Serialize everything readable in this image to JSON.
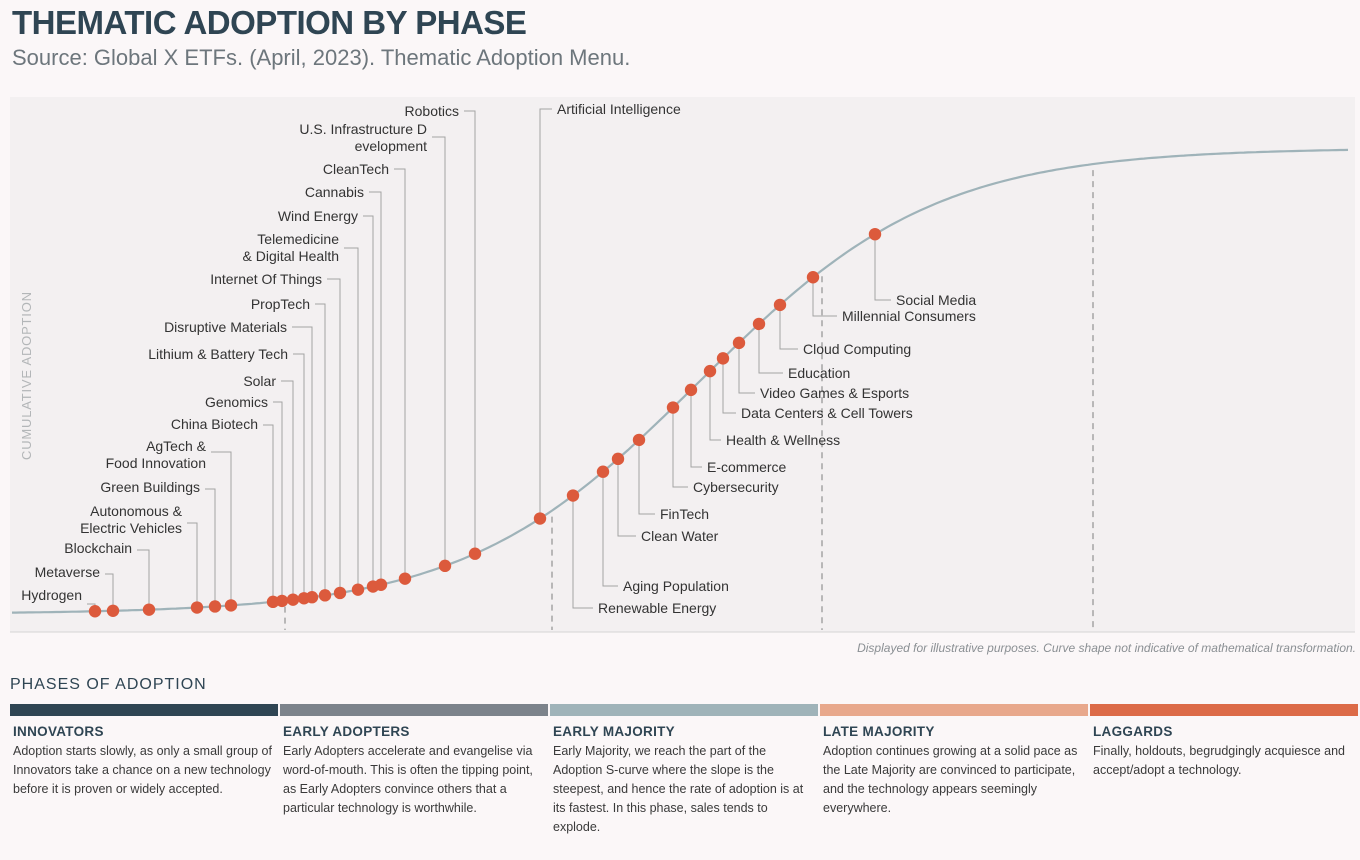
{
  "title": "THEMATIC ADOPTION BY PHASE",
  "subtitle": "Source: Global X ETFs. (April, 2023). Thematic Adoption Menu.",
  "note": "Displayed for illustrative purposes. Curve shape not indicative of mathematical transformation.",
  "phases_title": "PHASES OF ADOPTION",
  "phases": [
    {
      "name": "INNOVATORS",
      "color": "#2f4553",
      "desc": "Adoption starts slowly, as only a small group of Innovators take a chance on a new technology before it is proven or widely accepted."
    },
    {
      "name": "EARLY ADOPTERS",
      "color": "#7c838b",
      "desc": "Early Adopters accelerate and evangelise via word-of-mouth. This is often the tipping point, as Early Adopters convince others that a particular technology is worthwhile."
    },
    {
      "name": "EARLY MAJORITY",
      "color": "#9fb3b9",
      "desc": "Early Majority, we reach the part of the Adoption S-curve where the slope is the steepest, and hence the rate of adoption is at its fastest. In this phase, sales tends to explode."
    },
    {
      "name": "LATE MAJORITY",
      "color": "#e8a88c",
      "desc": "Adoption continues growing at a solid pace as the Late Majority are convinced to participate, and the technology appears seemingly everywhere."
    },
    {
      "name": "LAGGARDS",
      "color": "#dc6b48",
      "desc": "Finally, holdouts, begrudgingly acquiesce and accept/adopt a technology."
    }
  ],
  "chart_data": {
    "type": "scatter",
    "ylabel": "CUMULATIVE ADOPTION",
    "curve": "S-curve",
    "curve_color": "#9fb3b9",
    "point_color": "#dc5a3c",
    "themes": [
      "Hydrogen",
      "Metaverse",
      "Blockchain",
      "Autonomous & Electric Vehicles",
      "Green Buildings",
      "AgTech & Food Innovation",
      "China Biotech",
      "Genomics",
      "Solar",
      "Lithium & Battery Tech",
      "Disruptive Materials",
      "PropTech",
      "Internet Of Things",
      "Telemedicine & Digital Health",
      "Wind Energy",
      "Cannabis",
      "CleanTech",
      "U.S. Infrastructure Development",
      "Robotics",
      "Artificial Intelligence",
      "Renewable Energy",
      "Aging Population",
      "Clean Water",
      "FinTech",
      "Cybersecurity",
      "E-commerce",
      "Health & Wellness",
      "Data Centers & Cell Towers",
      "Video Games & Esports",
      "Education",
      "Cloud Computing",
      "Millennial Consumers",
      "Social Media"
    ]
  }
}
